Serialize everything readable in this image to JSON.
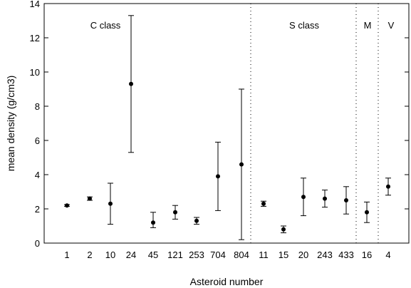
{
  "chart_data": {
    "type": "scatter",
    "title": "",
    "xlabel": "Asteroid number",
    "ylabel": "mean density (g/cm3)",
    "ylim": [
      0,
      14
    ],
    "yticks": [
      0,
      2,
      4,
      6,
      8,
      10,
      12,
      14
    ],
    "grid": false,
    "categories": [
      "1",
      "2",
      "10",
      "24",
      "45",
      "121",
      "253",
      "704",
      "804",
      "11",
      "15",
      "20",
      "243",
      "433",
      "16",
      "4"
    ],
    "points": [
      {
        "x": "1",
        "y": 2.2,
        "err_low": 2.15,
        "err_high": 2.25
      },
      {
        "x": "2",
        "y": 2.6,
        "err_low": 2.5,
        "err_high": 2.7
      },
      {
        "x": "10",
        "y": 2.3,
        "err_low": 1.1,
        "err_high": 3.5
      },
      {
        "x": "24",
        "y": 9.3,
        "err_low": 5.3,
        "err_high": 13.3
      },
      {
        "x": "45",
        "y": 1.2,
        "err_low": 0.9,
        "err_high": 1.8
      },
      {
        "x": "121",
        "y": 1.8,
        "err_low": 1.4,
        "err_high": 2.2
      },
      {
        "x": "253",
        "y": 1.3,
        "err_low": 1.1,
        "err_high": 1.5
      },
      {
        "x": "704",
        "y": 3.9,
        "err_low": 1.9,
        "err_high": 5.9
      },
      {
        "x": "804",
        "y": 4.6,
        "err_low": 0.2,
        "err_high": 9.0
      },
      {
        "x": "11",
        "y": 2.3,
        "err_low": 2.15,
        "err_high": 2.45
      },
      {
        "x": "15",
        "y": 0.8,
        "err_low": 0.6,
        "err_high": 1.0
      },
      {
        "x": "20",
        "y": 2.7,
        "err_low": 1.6,
        "err_high": 3.8
      },
      {
        "x": "243",
        "y": 2.6,
        "err_low": 2.1,
        "err_high": 3.1
      },
      {
        "x": "433",
        "y": 2.5,
        "err_low": 1.7,
        "err_high": 3.3
      },
      {
        "x": "16",
        "y": 1.8,
        "err_low": 1.2,
        "err_high": 2.4
      },
      {
        "x": "4",
        "y": 3.3,
        "err_low": 2.8,
        "err_high": 3.8
      }
    ],
    "class_groups": [
      {
        "label": "C class",
        "members": [
          "1",
          "2",
          "10",
          "24",
          "45",
          "121",
          "253",
          "704",
          "804"
        ]
      },
      {
        "label": "S class",
        "members": [
          "11",
          "15",
          "20",
          "243",
          "433"
        ]
      },
      {
        "label": "M",
        "members": [
          "16"
        ]
      },
      {
        "label": "V",
        "members": [
          "4"
        ]
      }
    ]
  }
}
